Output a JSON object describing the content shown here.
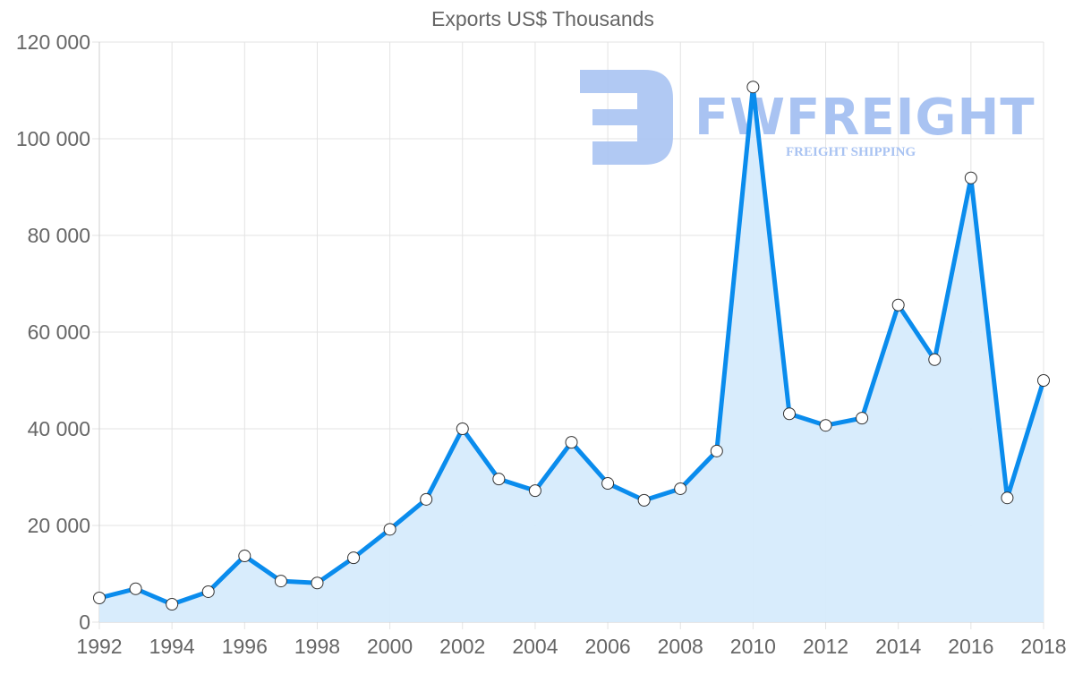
{
  "chart_data": {
    "type": "line",
    "title": "Exports US$ Thousands",
    "xlabel": "",
    "ylabel": "",
    "x": [
      1992,
      1993,
      1994,
      1995,
      1996,
      1997,
      1998,
      1999,
      2000,
      2001,
      2002,
      2003,
      2004,
      2005,
      2006,
      2007,
      2008,
      2009,
      2010,
      2011,
      2012,
      2013,
      2014,
      2015,
      2016,
      2017,
      2018
    ],
    "series": [
      {
        "name": "Exports US$ Thousands",
        "values": [
          5000,
          6900,
          3700,
          6300,
          13700,
          8500,
          8100,
          13300,
          19200,
          25400,
          40000,
          29600,
          27200,
          37200,
          28700,
          25200,
          27600,
          35400,
          110700,
          43100,
          40700,
          42200,
          65600,
          54300,
          91900,
          25700,
          50000
        ],
        "line_color": "#0a8ced",
        "fill_color": "#d6ebfc",
        "fill": true,
        "markers": "hollow-white-circle"
      }
    ],
    "xlim": [
      1992,
      2018
    ],
    "ylim": [
      0,
      120000
    ],
    "x_ticks": [
      "1992",
      "1994",
      "1996",
      "1998",
      "2000",
      "2002",
      "2004",
      "2006",
      "2008",
      "2010",
      "2012",
      "2014",
      "2016",
      "2018"
    ],
    "y_ticks": [
      "0",
      "20 000",
      "40 000",
      "60 000",
      "80 000",
      "100 000",
      "120 000"
    ],
    "grid": true,
    "legend": "none",
    "watermark": {
      "brand": "FWFREIGHT",
      "tagline": "FREIGHT SHIPPING",
      "color": "#a9c3f2"
    }
  }
}
